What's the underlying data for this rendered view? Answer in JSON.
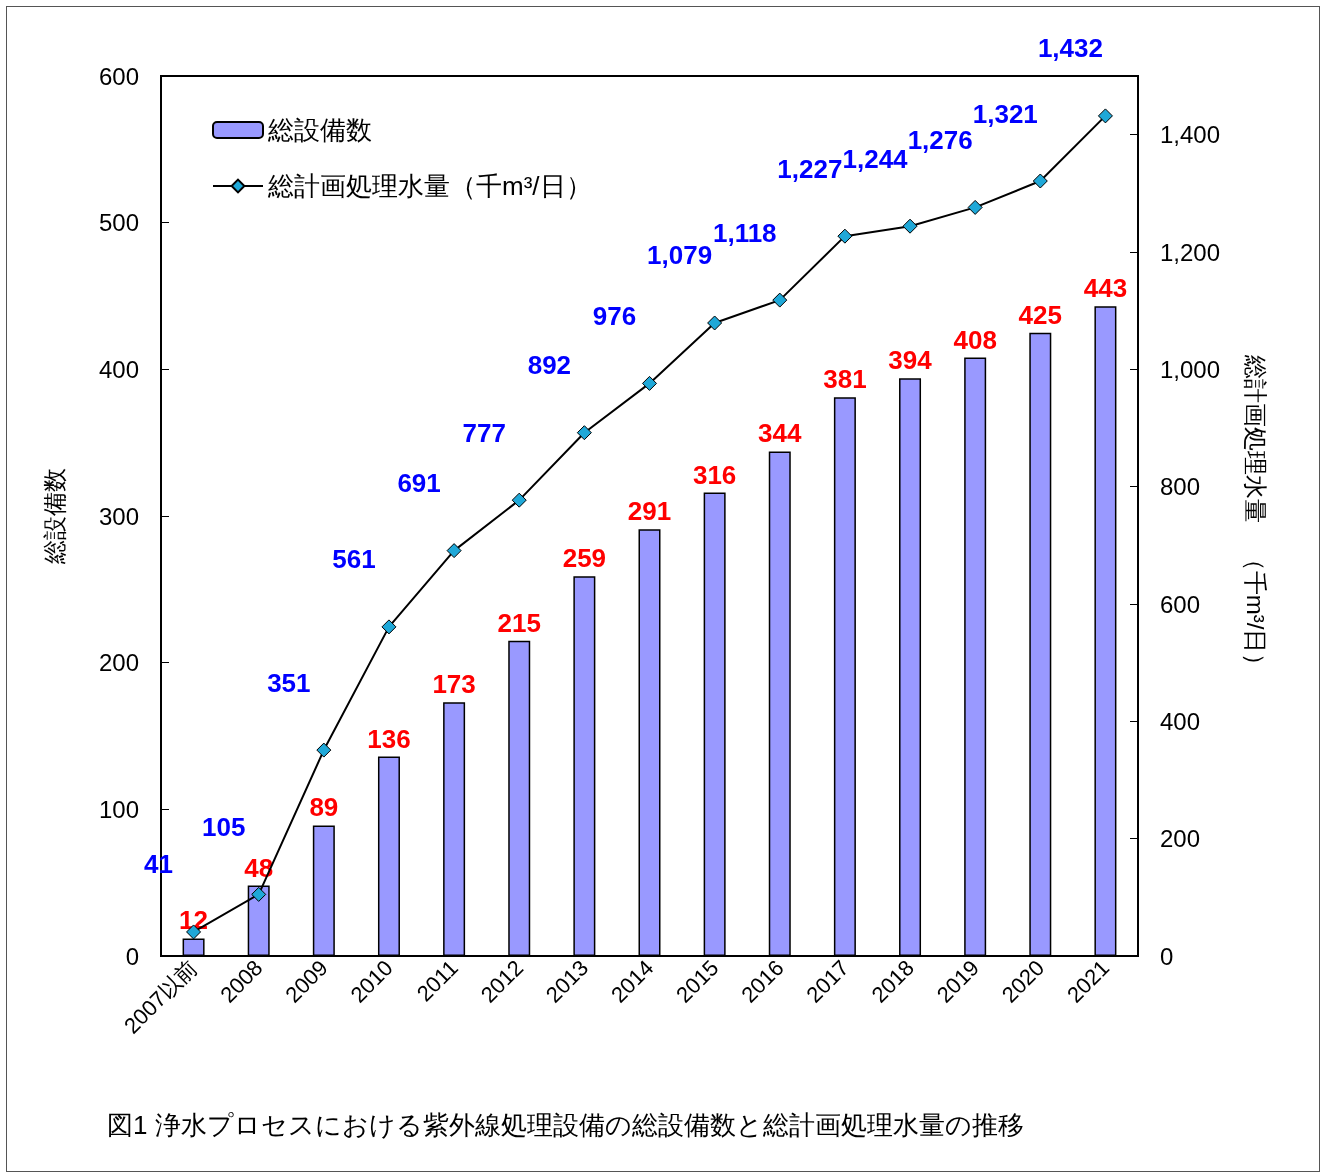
{
  "chart_data": {
    "type": "bar",
    "title": "図1 浄水プロセスにおける紫外線処理設備の総設備数と総計画処理水量の推移",
    "categories": [
      "2007以前",
      "2008",
      "2009",
      "2010",
      "2011",
      "2012",
      "2013",
      "2014",
      "2015",
      "2016",
      "2017",
      "2018",
      "2019",
      "2020",
      "2021"
    ],
    "series": [
      {
        "name": "総設備数",
        "color": "#9999ff",
        "values": [
          12,
          48,
          89,
          136,
          173,
          215,
          259,
          291,
          316,
          344,
          381,
          394,
          408,
          425,
          443
        ]
      },
      {
        "name": "総計画処理水量（千m³/日）",
        "type": "line",
        "axis": "y2",
        "color": "#1fa8d8",
        "values": [
          41,
          105,
          351,
          561,
          691,
          777,
          892,
          976,
          1079,
          1118,
          1227,
          1244,
          1276,
          1321,
          1432
        ],
        "value_labels": [
          "41",
          "105",
          "351",
          "561",
          "691",
          "777",
          "892",
          "976",
          "1,079",
          "1,118",
          "1,227",
          "1,244",
          "1,276",
          "1,321",
          "1,432"
        ]
      }
    ],
    "ylabel": "総設備数",
    "y2label": "総計画処理水量　（千m³/日）",
    "ylim": [
      0,
      600
    ],
    "yticks": [
      0,
      100,
      200,
      300,
      400,
      500,
      600
    ],
    "y2lim": [
      0,
      1500
    ],
    "y2ticks": [
      {
        "value": 0,
        "label": "0"
      },
      {
        "value": 200,
        "label": "200"
      },
      {
        "value": 400,
        "label": "400"
      },
      {
        "value": 600,
        "label": "600"
      },
      {
        "value": 800,
        "label": "800"
      },
      {
        "value": 1000,
        "label": "1,000"
      },
      {
        "value": 1200,
        "label": "1,200"
      },
      {
        "value": 1400,
        "label": "1,400"
      }
    ],
    "data_labels": true,
    "legend": "top left",
    "grid": false,
    "marker": "diamond",
    "line_style": "solid"
  }
}
